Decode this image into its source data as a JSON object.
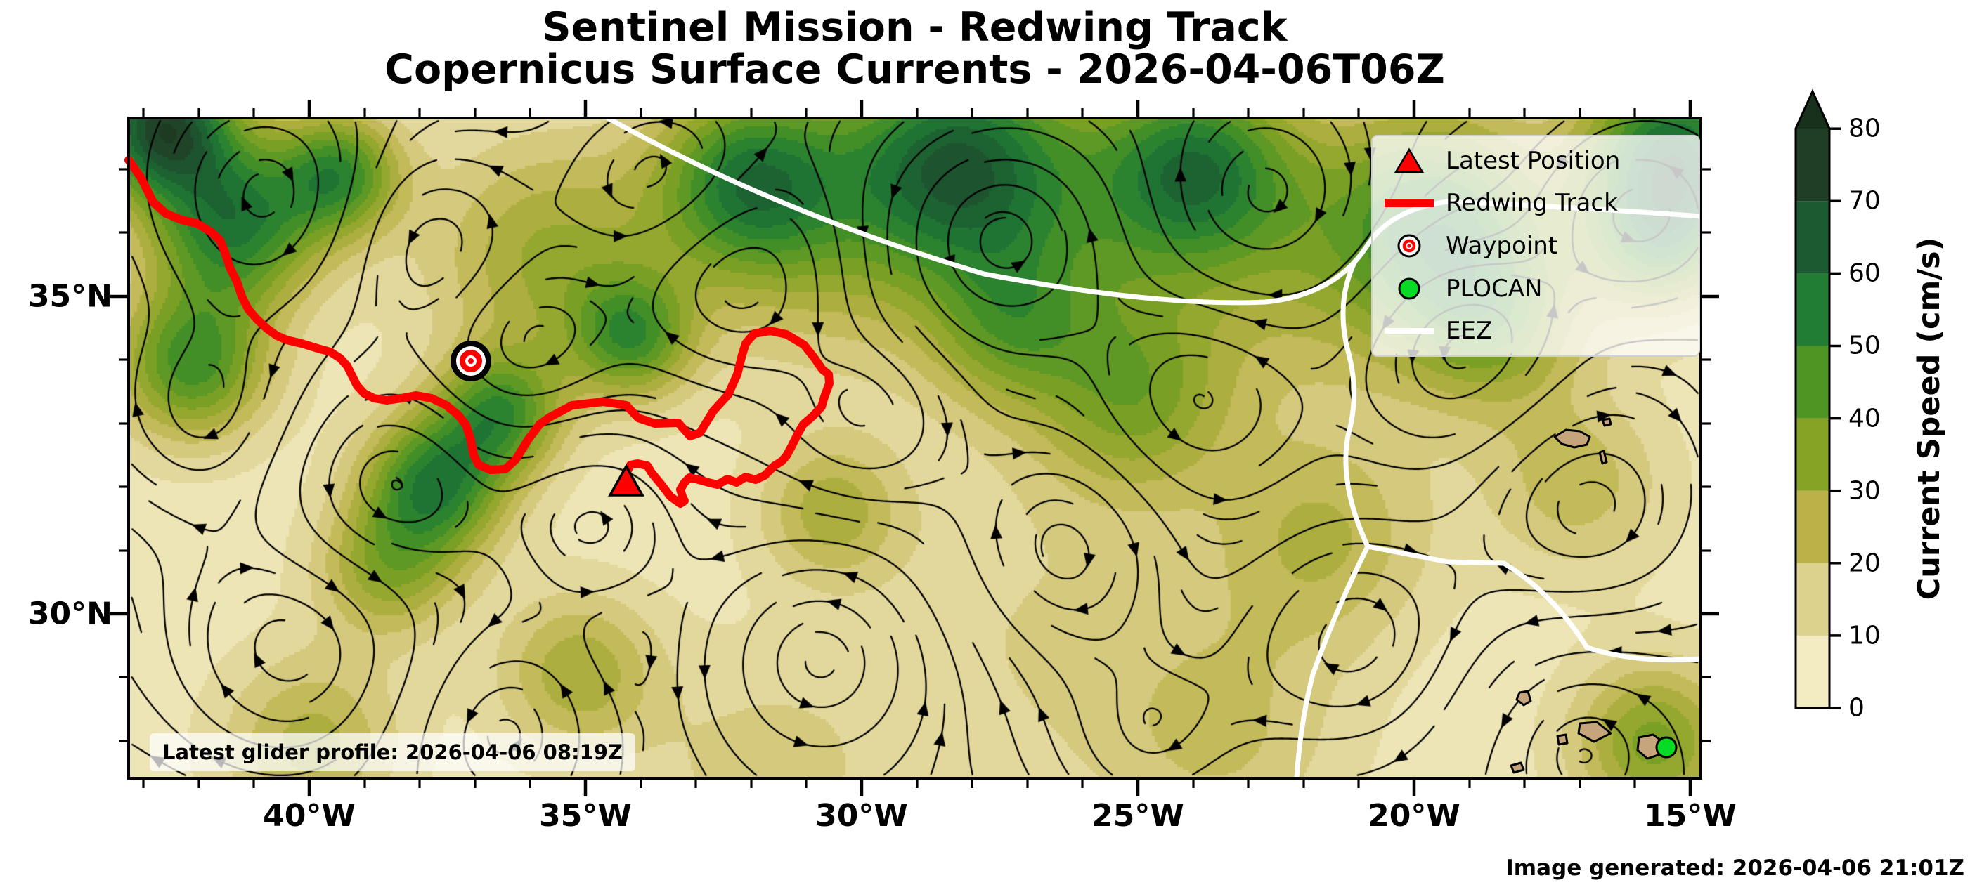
{
  "title": {
    "line1": "Sentinel Mission - Redwing Track",
    "line2": "Copernicus Surface Currents - 2026-04-06T06Z"
  },
  "axes": {
    "x_tick_labels": [
      "40°W",
      "35°W",
      "30°W",
      "25°W",
      "20°W",
      "15°W"
    ],
    "y_tick_labels": [
      "35°N",
      "30°N"
    ]
  },
  "legend": {
    "items": [
      {
        "label": "Latest Position",
        "marker": "red-triangle"
      },
      {
        "label": "Redwing Track",
        "marker": "red-line"
      },
      {
        "label": "Waypoint",
        "marker": "red-bullseye"
      },
      {
        "label": "PLOCAN",
        "marker": "green-dot"
      },
      {
        "label": "EEZ",
        "marker": "white-line"
      }
    ]
  },
  "colorbar": {
    "label": "Current Speed (cm/s)",
    "tick_labels": [
      "0",
      "10",
      "20",
      "30",
      "40",
      "50",
      "60",
      "70",
      "80"
    ],
    "band_colors": [
      "#f3ecc3",
      "#ddd18e",
      "#bab249",
      "#87a325",
      "#4f9523",
      "#207d33",
      "#1c5a31",
      "#203d25"
    ],
    "over_color": "#18311c"
  },
  "annotations": {
    "glider_profile": "Latest glider profile: 2026-04-06 08:19Z",
    "generated": "Image generated: 2026-04-06 21:01Z"
  },
  "map": {
    "track_color": "#ff0000",
    "eez_color": "#ffffff",
    "streamline_color": "#000000",
    "land_color": "#c7a57c",
    "plocan_color": "#05dc23"
  },
  "chart_data": {
    "type": "heatmap",
    "title": "Sentinel Mission - Redwing Track / Copernicus Surface Currents - 2026-04-06T06Z",
    "field": "ocean surface current speed (filled contours) with black streamlines showing current direction",
    "x_tick_labels": [
      "40°W",
      "35°W",
      "30°W",
      "25°W",
      "20°W",
      "15°W"
    ],
    "y_tick_labels": [
      "35°N",
      "30°N"
    ],
    "x_range_deg_west": [
      43.3,
      14.8
    ],
    "y_range_deg_north": [
      27.4,
      37.8
    ],
    "colorbar": {
      "label": "Current Speed (cm/s)",
      "range": [
        0,
        80
      ],
      "tick_step": 10,
      "extend": "max"
    },
    "legend_entries": [
      "Latest Position",
      "Redwing Track",
      "Waypoint",
      "PLOCAN",
      "EEZ"
    ],
    "markers": [
      {
        "name": "Latest Position",
        "approx_lon": -34.3,
        "approx_lat": 32.0
      },
      {
        "name": "Waypoint",
        "approx_lon": -37.1,
        "approx_lat": 34.0
      },
      {
        "name": "PLOCAN",
        "approx_lon": -15.4,
        "approx_lat": 27.9
      }
    ],
    "track": {
      "start_approx": {
        "lon": -43.3,
        "lat": 37.2
      },
      "end_approx": {
        "lon": -34.3,
        "lat": 32.0
      }
    }
  }
}
